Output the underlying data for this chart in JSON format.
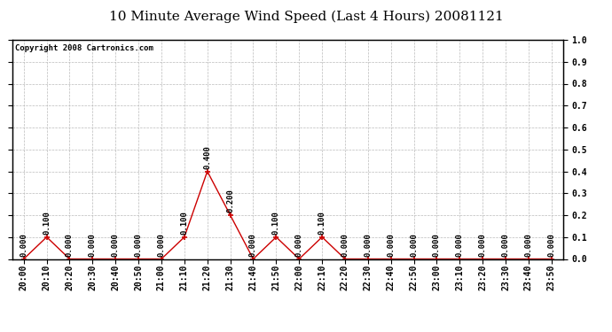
{
  "title": "10 Minute Average Wind Speed (Last 4 Hours) 20081121",
  "copyright": "Copyright 2008 Cartronics.com",
  "x_labels": [
    "20:00",
    "20:10",
    "20:20",
    "20:30",
    "20:40",
    "20:50",
    "21:00",
    "21:10",
    "21:20",
    "21:30",
    "21:40",
    "21:50",
    "22:00",
    "22:10",
    "22:20",
    "22:30",
    "22:40",
    "22:50",
    "23:00",
    "23:10",
    "23:20",
    "23:30",
    "23:40",
    "23:50"
  ],
  "y_values": [
    0.0,
    0.1,
    0.0,
    0.0,
    0.0,
    0.0,
    0.0,
    0.1,
    0.4,
    0.2,
    0.0,
    0.1,
    0.0,
    0.1,
    0.0,
    0.0,
    0.0,
    0.0,
    0.0,
    0.0,
    0.0,
    0.0,
    0.0,
    0.0
  ],
  "line_color": "#cc0000",
  "marker_color": "#cc0000",
  "bg_color": "#ffffff",
  "grid_color": "#bbbbbb",
  "ylim": [
    0.0,
    1.0
  ],
  "yticks": [
    0.0,
    0.1,
    0.2,
    0.3,
    0.4,
    0.5,
    0.6,
    0.7,
    0.8,
    0.9,
    1.0
  ],
  "title_fontsize": 11,
  "copyright_fontsize": 6.5,
  "annotation_fontsize": 6.5,
  "tick_label_fontsize": 7
}
